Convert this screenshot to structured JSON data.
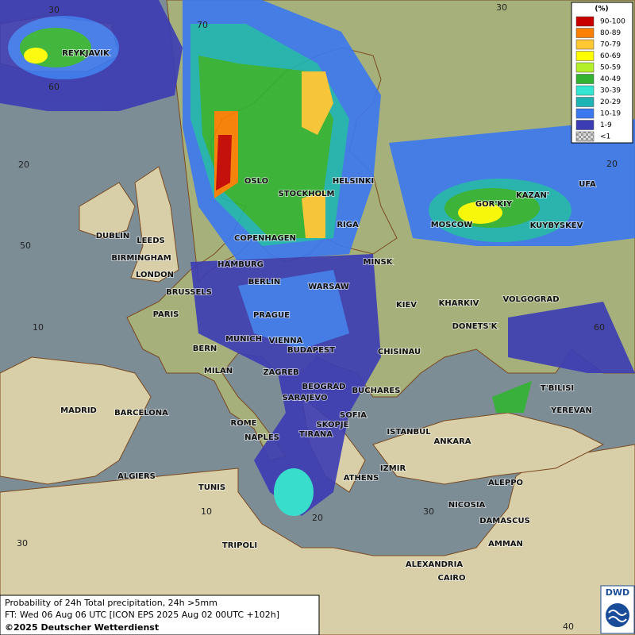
{
  "legend": {
    "title": "(%)",
    "items": [
      {
        "label": "90-100",
        "color": "#c80000"
      },
      {
        "label": "80-89",
        "color": "#ff7f00"
      },
      {
        "label": "70-79",
        "color": "#ffc832"
      },
      {
        "label": "60-69",
        "color": "#ffff00"
      },
      {
        "label": "50-59",
        "color": "#b4f02a"
      },
      {
        "label": "40-49",
        "color": "#32b432"
      },
      {
        "label": "30-39",
        "color": "#32e6d2"
      },
      {
        "label": "20-29",
        "color": "#1eb4b4"
      },
      {
        "label": "10-19",
        "color": "#3c78f0"
      },
      {
        "label": "1-9",
        "color": "#3c3cb4"
      },
      {
        "label": "<1",
        "color": "#b4b4b4"
      }
    ]
  },
  "cities": [
    "REYKJAVIK",
    "OSLO",
    "STOCKHOLM",
    "HELSINKI",
    "DUBLIN",
    "LEEDS",
    "BIRMINGHAM",
    "LONDON",
    "COPENHAGEN",
    "RIGA",
    "MOSCOW",
    "GOR'KIY",
    "KAZAN'",
    "UFA",
    "KUYBYSKEV",
    "HAMBURG",
    "BERLIN",
    "MINSK",
    "WARSAW",
    "BRUSSELS",
    "KIEV",
    "KHARKIV",
    "VOLGOGRAD",
    "PARIS",
    "PRAGUE",
    "DONETS'K",
    "MUNICH",
    "VIENNA",
    "BERN",
    "BUDAPEST",
    "CHISINAU",
    "MILAN",
    "ZAGREB",
    "T'BILISI",
    "BEOGRAD",
    "BUCHARES",
    "SARAJEVO",
    "MADRID",
    "BARCELONA",
    "SOFIA",
    "YEREVAN",
    "ROME",
    "SKOPJE",
    "ISTANBUL",
    "NAPLES",
    "TIRANA",
    "ANKARA",
    "IZMIR",
    "ALGIERS",
    "ATHENS",
    "ALEPPO",
    "TUNIS",
    "NICOSIA",
    "DAMASCUS",
    "AMMAN",
    "TRIPOLI",
    "ALEXANDRIA",
    "CAIRO"
  ],
  "grid_labels": [
    30,
    70,
    60,
    20,
    50,
    10,
    30,
    20,
    60,
    10,
    20,
    30,
    40,
    30
  ],
  "footer": {
    "line1": "Probability of 24h Total precipitation, 24h >5mm",
    "line2": "FT: Wed 06 Aug 06 UTC [ICON EPS 2025 Aug 02 00UTC +102h]",
    "copyright": "©2025 Deutscher Wetterdienst"
  },
  "logo": "DWD"
}
